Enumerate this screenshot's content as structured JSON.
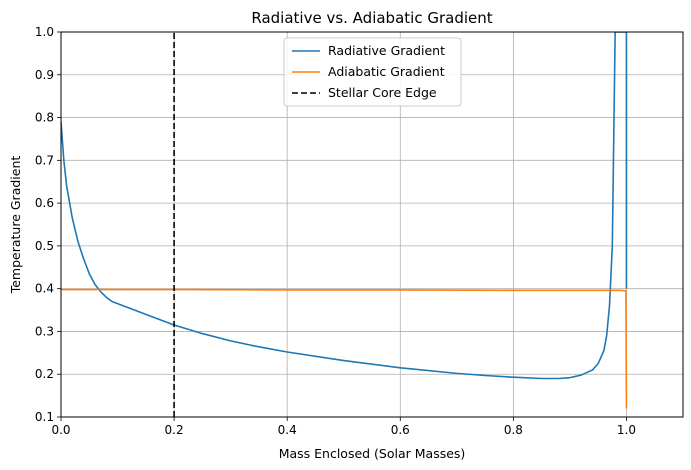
{
  "chart_data": {
    "type": "line",
    "title": "Radiative vs. Adiabatic Gradient",
    "xlabel": "Mass Enclosed (Solar Masses)",
    "ylabel": "Temperature Gradient",
    "xlim": [
      0,
      1.1
    ],
    "ylim": [
      0.1,
      1.0
    ],
    "xticks": [
      0.0,
      0.2,
      0.4,
      0.6,
      0.8,
      1.0
    ],
    "xtick_labels": [
      "0.0",
      "0.2",
      "0.4",
      "0.6",
      "0.8",
      "1.0"
    ],
    "yticks": [
      0.1,
      0.2,
      0.3,
      0.4,
      0.5,
      0.6,
      0.7,
      0.8,
      0.9,
      1.0
    ],
    "ytick_labels": [
      "0.1",
      "0.2",
      "0.3",
      "0.4",
      "0.5",
      "0.6",
      "0.7",
      "0.8",
      "0.9",
      "1.0"
    ],
    "grid": true,
    "legend_position": "top-center",
    "series": [
      {
        "name": "Radiative Gradient",
        "color": "#1f77b4",
        "style": "solid",
        "x": [
          0.0,
          0.005,
          0.01,
          0.02,
          0.03,
          0.04,
          0.05,
          0.06,
          0.07,
          0.08,
          0.09,
          0.1,
          0.12,
          0.15,
          0.2,
          0.25,
          0.3,
          0.35,
          0.4,
          0.5,
          0.6,
          0.7,
          0.75,
          0.8,
          0.85,
          0.88,
          0.9,
          0.92,
          0.94,
          0.95,
          0.96,
          0.965,
          0.97,
          0.975,
          0.98,
          0.99,
          1.0,
          1.0
        ],
        "y": [
          0.79,
          0.7,
          0.64,
          0.565,
          0.51,
          0.47,
          0.435,
          0.41,
          0.393,
          0.38,
          0.37,
          0.365,
          0.355,
          0.34,
          0.315,
          0.295,
          0.278,
          0.264,
          0.252,
          0.232,
          0.215,
          0.202,
          0.197,
          0.193,
          0.19,
          0.19,
          0.192,
          0.198,
          0.21,
          0.225,
          0.255,
          0.29,
          0.36,
          0.5,
          1.0,
          1.0,
          1.0,
          0.4
        ]
      },
      {
        "name": "Adiabatic Gradient",
        "color": "#ff7f0e",
        "style": "solid",
        "x": [
          0.0,
          0.2,
          0.4,
          0.6,
          0.8,
          0.99,
          0.999,
          1.0
        ],
        "y": [
          0.398,
          0.398,
          0.397,
          0.397,
          0.396,
          0.396,
          0.395,
          0.12
        ]
      },
      {
        "name": "Stellar Core Edge",
        "color": "#000000",
        "style": "dashed",
        "x": [
          0.2,
          0.2
        ],
        "y": [
          0.1,
          1.0
        ]
      }
    ]
  }
}
